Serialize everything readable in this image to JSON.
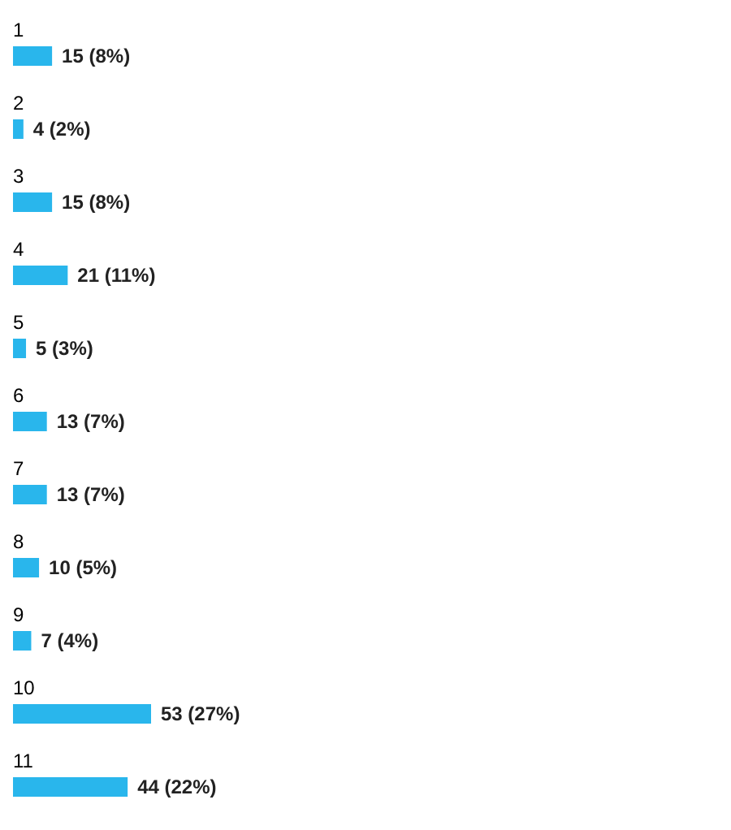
{
  "chart_data": {
    "type": "bar",
    "orientation": "horizontal",
    "categories": [
      "1",
      "2",
      "3",
      "4",
      "5",
      "6",
      "7",
      "8",
      "9",
      "10",
      "11"
    ],
    "values": [
      15,
      4,
      15,
      21,
      5,
      13,
      13,
      10,
      7,
      53,
      44
    ],
    "color": "#29b6ec",
    "value_labels": [
      "15 (8%)",
      "4 (2%)",
      "15 (8%)",
      "21 (11%)",
      "5 (3%)",
      "13 (7%)",
      "13 (7%)",
      "10 (5%)",
      "7 (4%)",
      "53 (27%)",
      "44 (22%)"
    ]
  }
}
